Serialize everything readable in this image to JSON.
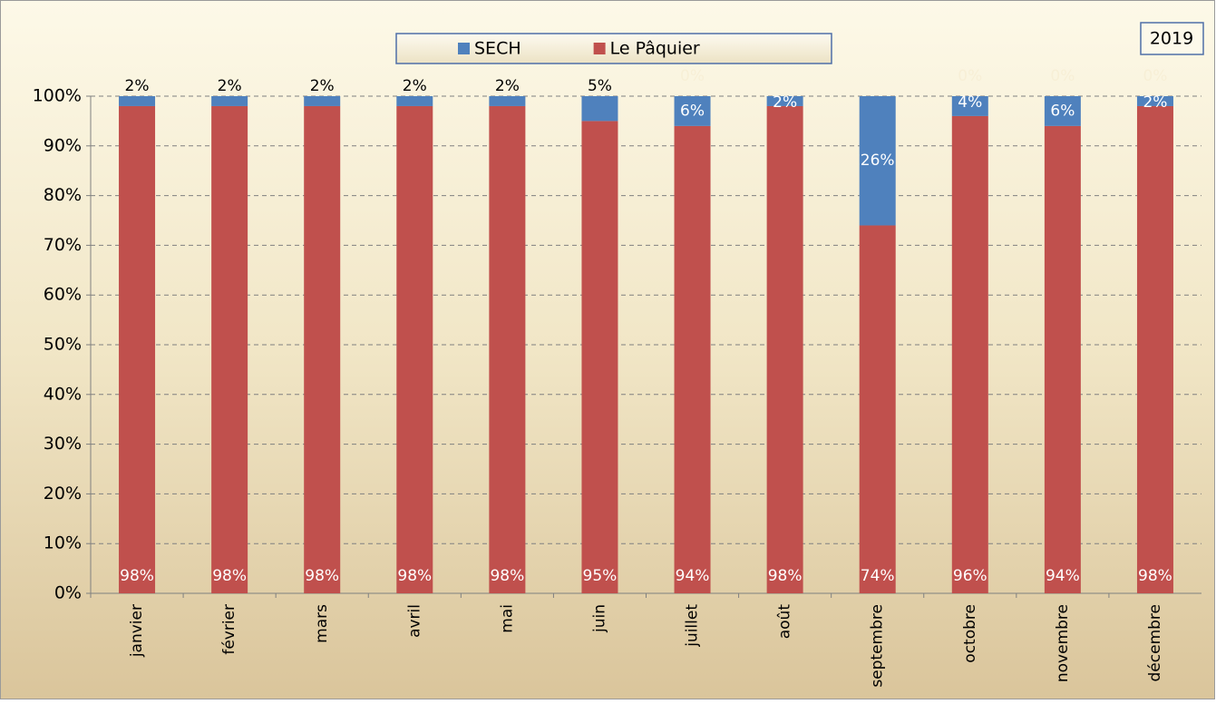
{
  "chart_data": {
    "type": "stacked_bar",
    "title": "2019",
    "categories": [
      "janvier",
      "février",
      "mars",
      "avril",
      "mai",
      "juin",
      "juillet",
      "août",
      "septembre",
      "octobre",
      "novembre",
      "décembre"
    ],
    "series": [
      {
        "name": "SECH",
        "color": "#4f81bd",
        "values": [
          2,
          2,
          2,
          2,
          2,
          5,
          6,
          2,
          26,
          4,
          6,
          2
        ],
        "value_labels": [
          "2%",
          "2%",
          "2%",
          "2%",
          "2%",
          "5%",
          "6%",
          "2%",
          "26%",
          "4%",
          "6%",
          "2%"
        ]
      },
      {
        "name": "Le Pâquier",
        "color": "#c0504d",
        "values": [
          98,
          98,
          98,
          98,
          98,
          95,
          94,
          98,
          74,
          96,
          94,
          98
        ],
        "value_labels": [
          "98%",
          "98%",
          "98%",
          "98%",
          "98%",
          "95%",
          "94%",
          "98%",
          "74%",
          "96%",
          "94%",
          "98%"
        ]
      }
    ],
    "hidden_series": {
      "color": "#f7efd6",
      "values": [
        null,
        null,
        null,
        null,
        null,
        null,
        0,
        null,
        null,
        0,
        0,
        0
      ],
      "value_labels": [
        null,
        null,
        null,
        null,
        null,
        null,
        "0%",
        null,
        null,
        "0%",
        "0%",
        "0%"
      ]
    },
    "ylim": [
      0,
      100
    ],
    "yticks": [
      {
        "value": 0,
        "label": "0%"
      },
      {
        "value": 10,
        "label": "10%"
      },
      {
        "value": 20,
        "label": "20%"
      },
      {
        "value": 30,
        "label": "30%"
      },
      {
        "value": 40,
        "label": "40%"
      },
      {
        "value": 50,
        "label": "50%"
      },
      {
        "value": 60,
        "label": "60%"
      },
      {
        "value": 70,
        "label": "70%"
      },
      {
        "value": 80,
        "label": "80%"
      },
      {
        "value": 90,
        "label": "90%"
      },
      {
        "value": 100,
        "label": "100%"
      }
    ],
    "grid": true
  }
}
